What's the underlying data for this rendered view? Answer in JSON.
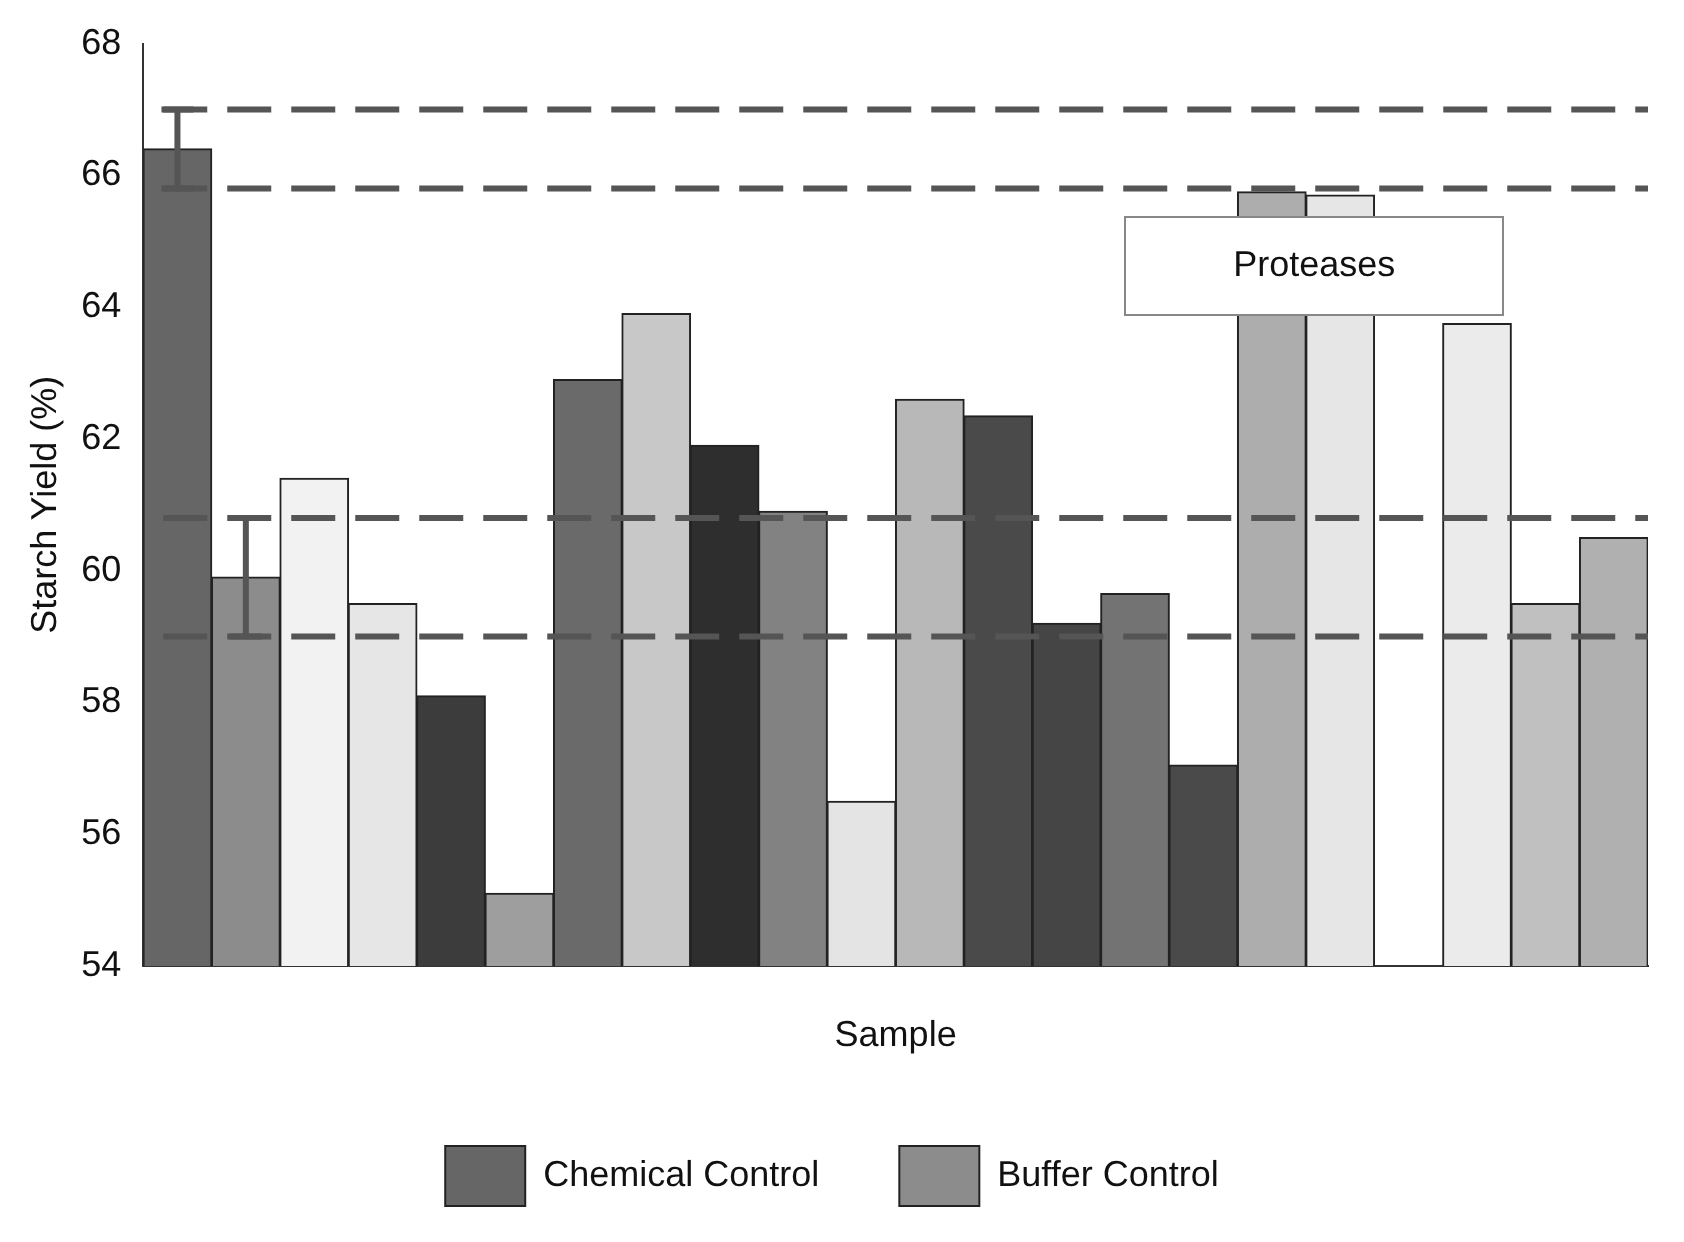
{
  "chart_data": {
    "type": "bar",
    "xlabel": "Sample",
    "ylabel": "Starch Yield (%)",
    "categories": [
      null,
      null,
      null,
      null,
      null,
      null,
      null,
      null,
      null,
      null,
      null,
      null,
      null,
      null,
      null,
      null,
      null,
      null,
      null,
      null,
      null,
      null
    ],
    "series": [
      {
        "name": "Chemical Control",
        "color": "#666666",
        "values": [
          66.4,
          null,
          null,
          null,
          null,
          null,
          null,
          null,
          null,
          null,
          null,
          null,
          null,
          null,
          null,
          null,
          null,
          null,
          null,
          null,
          null,
          null
        ],
        "errors": [
          0.6,
          null,
          null,
          null,
          null,
          null,
          null,
          null,
          null,
          null,
          null,
          null,
          null,
          null,
          null,
          null,
          null,
          null,
          null,
          null,
          null,
          null
        ]
      },
      {
        "name": "Buffer Control",
        "color": "#8c8c8c",
        "values": [
          null,
          59.9,
          null,
          null,
          null,
          null,
          null,
          null,
          null,
          null,
          null,
          null,
          null,
          null,
          null,
          null,
          null,
          null,
          null,
          null,
          null,
          null
        ],
        "errors": [
          null,
          0.9,
          null,
          null,
          null,
          null,
          null,
          null,
          null,
          null,
          null,
          null,
          null,
          null,
          null,
          null,
          null,
          null,
          null,
          null,
          null,
          null
        ]
      },
      {
        "colors": [
          null,
          null,
          "#f2f2f2",
          "#e6e6e6",
          "#3c3c3c",
          "#9e9e9e",
          "#6a6a6a",
          "#c8c8c8",
          "#2e2e2e",
          "#828282",
          "#e4e4e4",
          "#b8b8b8",
          "#4a4a4a",
          "#454545",
          "#737373",
          "#4a4a4a",
          "#adadad",
          "#e6e6e6",
          "#e0e0e0",
          "#ebebeb",
          "#c0c0c0",
          "#b0b0b0"
        ],
        "values": [
          null,
          null,
          61.4,
          59.5,
          58.1,
          55.1,
          62.9,
          63.9,
          61.9,
          60.9,
          56.5,
          62.6,
          62.35,
          59.2,
          59.65,
          57.05,
          65.75,
          65.7,
          null,
          63.75,
          59.5,
          60.5
        ]
      }
    ],
    "ylim": [
      54,
      68
    ],
    "yticks": [
      54,
      56,
      58,
      60,
      62,
      64,
      66,
      68
    ],
    "grid": false,
    "legend": "bottom",
    "ref_lines": [
      {
        "axis": "y",
        "value": 67.0,
        "color": "#555555",
        "line_style": "dashed"
      },
      {
        "axis": "y",
        "value": 65.8,
        "color": "#555555",
        "line_style": "dashed"
      },
      {
        "axis": "y",
        "value": 60.8,
        "color": "#555555",
        "line_style": "dashed"
      },
      {
        "axis": "y",
        "value": 59.0,
        "color": "#555555",
        "line_style": "dashed"
      }
    ],
    "annotations": [
      "Proteases"
    ]
  }
}
